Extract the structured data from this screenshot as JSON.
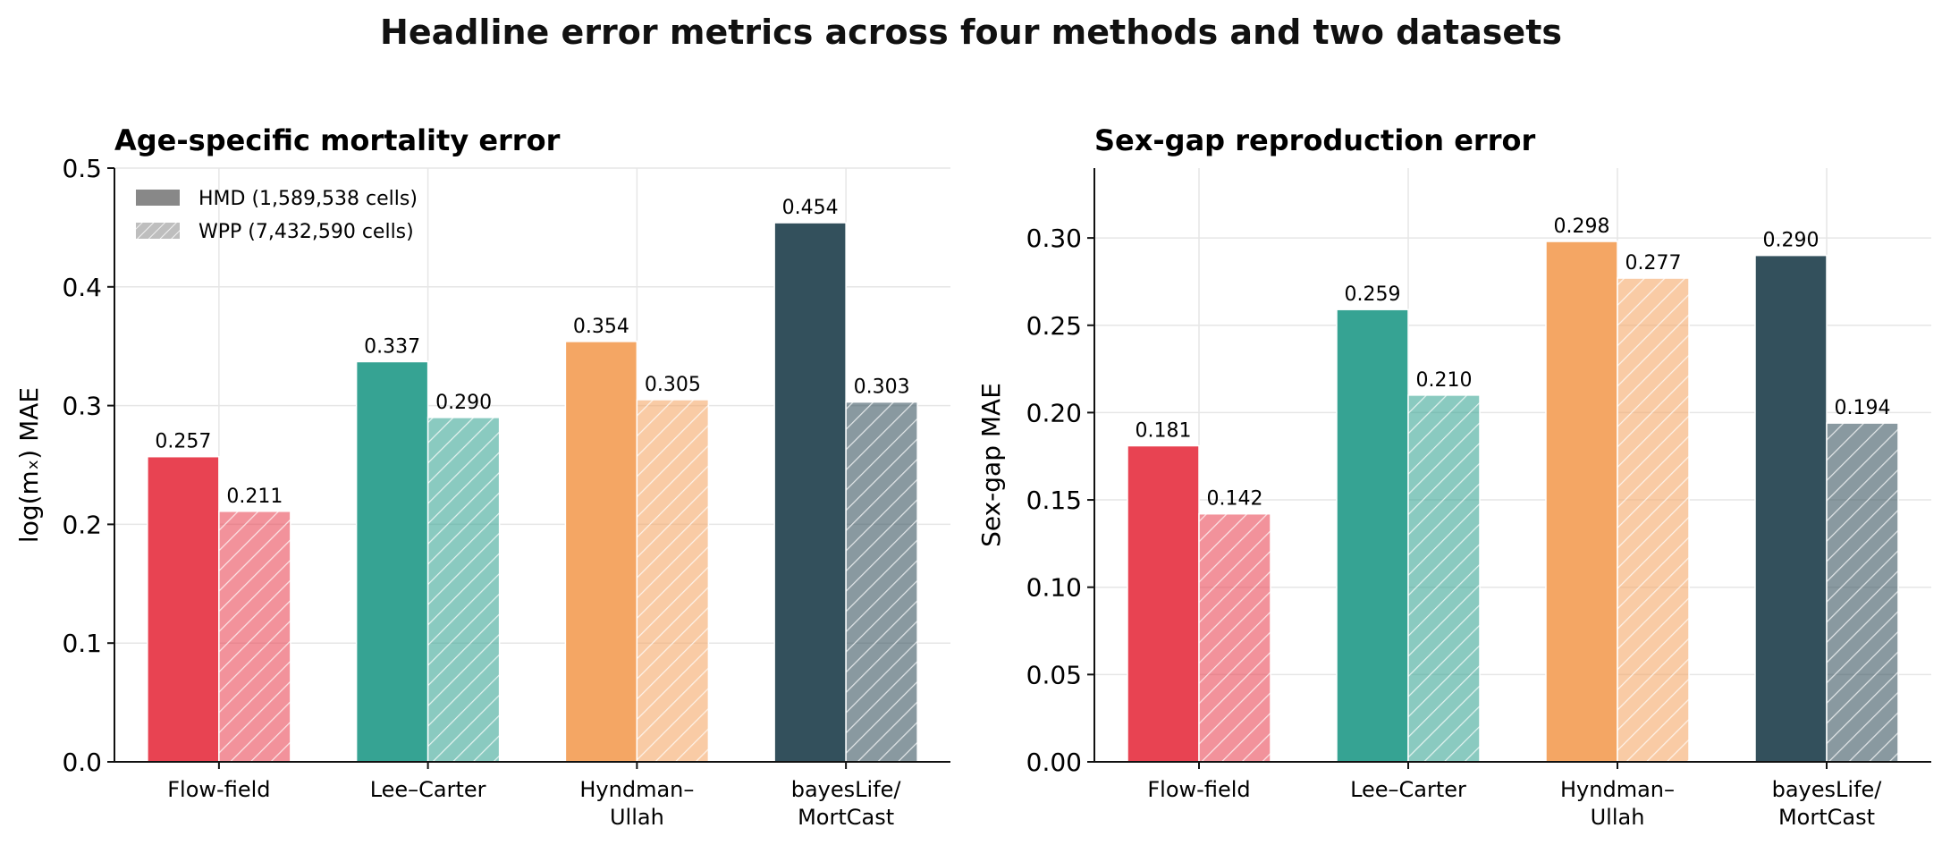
{
  "suptitle": "Headline error metrics across four methods and two datasets",
  "colors": {
    "methods": [
      "#e84352",
      "#36a393",
      "#f4a664",
      "#33505c"
    ],
    "grid": "#e6e6e6"
  },
  "chart_data": [
    {
      "type": "bar",
      "title": "Age-specific mortality error",
      "xlabel": "",
      "ylabel": "log(mₓ) MAE",
      "ylim": [
        0,
        0.5
      ],
      "yticks": [
        "0.0",
        "0.1",
        "0.2",
        "0.3",
        "0.4",
        "0.5"
      ],
      "categories": [
        [
          "Flow-field"
        ],
        [
          "Lee–Carter"
        ],
        [
          "Hyndman–",
          "Ullah"
        ],
        [
          "bayesLife/",
          "MortCast"
        ]
      ],
      "series": [
        {
          "name": "HMD (1,589,538 cells)",
          "values": [
            0.257,
            0.337,
            0.354,
            0.454
          ],
          "labels": [
            "0.257",
            "0.337",
            "0.354",
            "0.454"
          ],
          "hatched": false
        },
        {
          "name": "WPP (7,432,590 cells)",
          "values": [
            0.211,
            0.29,
            0.305,
            0.303
          ],
          "labels": [
            "0.211",
            "0.290",
            "0.305",
            "0.303"
          ],
          "hatched": true
        }
      ],
      "legend": "top-left",
      "grid": true
    },
    {
      "type": "bar",
      "title": "Sex-gap reproduction error",
      "xlabel": "",
      "ylabel": "Sex-gap MAE",
      "ylim": [
        0,
        0.34
      ],
      "yticks": [
        "0.00",
        "0.05",
        "0.10",
        "0.15",
        "0.20",
        "0.25",
        "0.30"
      ],
      "categories": [
        [
          "Flow-field"
        ],
        [
          "Lee–Carter"
        ],
        [
          "Hyndman–",
          "Ullah"
        ],
        [
          "bayesLife/",
          "MortCast"
        ]
      ],
      "series": [
        {
          "name": "HMD",
          "values": [
            0.181,
            0.259,
            0.298,
            0.29
          ],
          "labels": [
            "0.181",
            "0.259",
            "0.298",
            "0.290"
          ],
          "hatched": false
        },
        {
          "name": "WPP",
          "values": [
            0.142,
            0.21,
            0.277,
            0.194
          ],
          "labels": [
            "0.142",
            "0.210",
            "0.277",
            "0.194"
          ],
          "hatched": true
        }
      ],
      "grid": true
    }
  ]
}
